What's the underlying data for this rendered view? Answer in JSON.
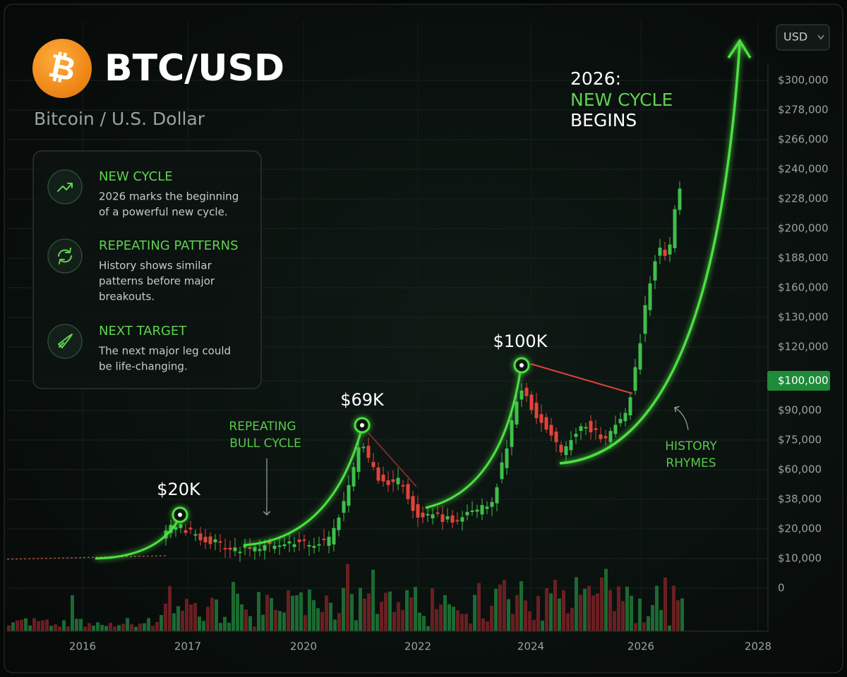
{
  "header": {
    "logo": "₿",
    "title": "BTC/USD",
    "subtitle": "Bitcoin / U.S. Dollar"
  },
  "currency_selector": "USD",
  "panel": [
    {
      "title": "NEW CYCLE",
      "lines": [
        "2026 marks the beginning",
        "of a powerful new cycle."
      ]
    },
    {
      "title": "REPEATING PATTERNS",
      "lines": [
        "History shows similar",
        "patterns before major",
        "breakouts."
      ]
    },
    {
      "title": "NEXT TARGET",
      "lines": [
        "The next major leg could",
        "be life-changing."
      ]
    }
  ],
  "price_axis": [
    "$300,000",
    "$278,000",
    "$266,000",
    "$240,000",
    "$228,000",
    "$200,000",
    "$188,000",
    "$160,000",
    "$130,000",
    "$120,000",
    "$100,000",
    "$90,000",
    "$75,000",
    "$60,000",
    "$38,000",
    "$20,000",
    "$10,000",
    "0"
  ],
  "current_price_index": 10,
  "year_axis": [
    "2016",
    "2017",
    "2020",
    "2022",
    "2024",
    "2026",
    "2028"
  ],
  "annotations": {
    "peak_1": "$20K",
    "peak_2": "$69K",
    "peak_3": "$100K",
    "bull_cycle": [
      "REPEATING",
      "BULL CYCLE"
    ],
    "history": [
      "HISTORY",
      "RHYMES"
    ],
    "headline": [
      "2026:",
      "NEW CYCLE",
      "BEGINS"
    ]
  }
}
